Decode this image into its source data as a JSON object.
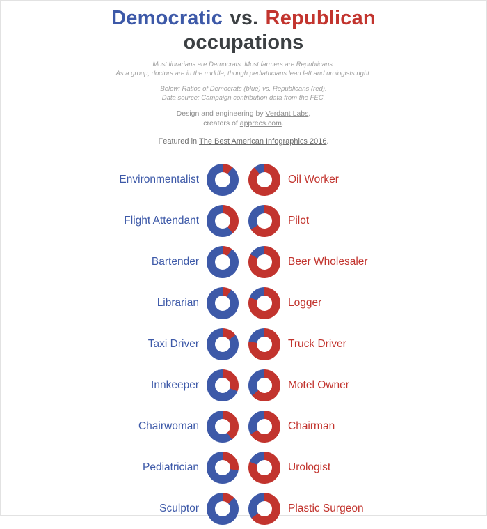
{
  "colors": {
    "blue": "#3D59A8",
    "red": "#C2342E"
  },
  "title": {
    "democratic": "Democratic",
    "vs": "vs.",
    "republican": "Republican",
    "occupations": "occupations"
  },
  "intro": {
    "line1": "Most librarians are Democrats. Most farmers are Republicans.",
    "line2": "As a group, doctors are in the middle, though pediatricians lean left and urologists right.",
    "line3": "Below: Ratios of Democrats (blue) vs. Republicans (red).",
    "line4": "Data source: Campaign contribution data from the FEC."
  },
  "credits": {
    "design_prefix": "Design and engineering by ",
    "design_link": "Verdant Labs",
    "design_suffix": ",",
    "creators_prefix": "creators of ",
    "creators_link": "apprecs.com",
    "creators_suffix": "."
  },
  "featured": {
    "prefix": "Featured in ",
    "link": "The Best American Infographics 2016",
    "suffix": "."
  },
  "chart_data": {
    "type": "pie",
    "subtype": "donut-small-multiples",
    "unit": "percent of campaign contributions",
    "legend": {
      "blue": "Democrats",
      "red": "Republicans"
    },
    "segment_order": "red starts at 12 o'clock clockwise, blue fills remainder",
    "rows": [
      {
        "left": {
          "label": "Environmentalist",
          "dem_pct": 89,
          "rep_pct": 11
        },
        "right": {
          "label": "Oil Worker",
          "dem_pct": 11,
          "rep_pct": 89
        }
      },
      {
        "left": {
          "label": "Flight Attendant",
          "dem_pct": 61,
          "rep_pct": 39
        },
        "right": {
          "label": "Pilot",
          "dem_pct": 34,
          "rep_pct": 66
        }
      },
      {
        "left": {
          "label": "Bartender",
          "dem_pct": 90,
          "rep_pct": 10
        },
        "right": {
          "label": "Beer Wholesaler",
          "dem_pct": 17,
          "rep_pct": 83
        }
      },
      {
        "left": {
          "label": "Librarian",
          "dem_pct": 91,
          "rep_pct": 9
        },
        "right": {
          "label": "Logger",
          "dem_pct": 19,
          "rep_pct": 81
        }
      },
      {
        "left": {
          "label": "Taxi Driver",
          "dem_pct": 85,
          "rep_pct": 15
        },
        "right": {
          "label": "Truck Driver",
          "dem_pct": 22,
          "rep_pct": 78
        }
      },
      {
        "left": {
          "label": "Innkeeper",
          "dem_pct": 69,
          "rep_pct": 31
        },
        "right": {
          "label": "Motel Owner",
          "dem_pct": 36,
          "rep_pct": 64
        }
      },
      {
        "left": {
          "label": "Chairwoman",
          "dem_pct": 60,
          "rep_pct": 40
        },
        "right": {
          "label": "Chairman",
          "dem_pct": 33,
          "rep_pct": 67
        }
      },
      {
        "left": {
          "label": "Pediatrician",
          "dem_pct": 72,
          "rep_pct": 28
        },
        "right": {
          "label": "Urologist",
          "dem_pct": 19,
          "rep_pct": 81
        }
      },
      {
        "left": {
          "label": "Sculptor",
          "dem_pct": 87,
          "rep_pct": 13
        },
        "right": {
          "label": "Plastic Surgeon",
          "dem_pct": 35,
          "rep_pct": 65
        }
      }
    ]
  }
}
